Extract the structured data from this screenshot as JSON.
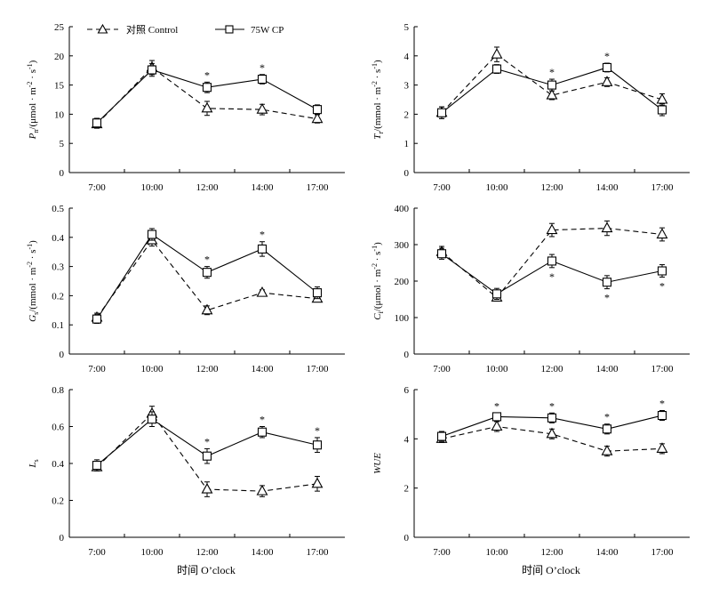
{
  "legend": {
    "control_label": "对照 Control",
    "cp_label": "75W CP"
  },
  "x_axis_title": "时间  O’clock",
  "chart_data": [
    {
      "id": "pn",
      "type": "line",
      "ylabel_main": "P",
      "ylabel_sub": "n",
      "ylabel_unit": "/(μmol · m",
      "ylabel_unit_sup1": "-2",
      "ylabel_unit_mid": " · s",
      "ylabel_unit_sup2": "-1",
      "ylabel_unit_end": ")",
      "categories": [
        "7:00",
        "10:00",
        "12:00",
        "14:00",
        "17:00"
      ],
      "yticks": [
        0,
        5,
        10,
        15,
        20,
        25
      ],
      "ylim": [
        0,
        25
      ],
      "series": [
        {
          "name": "对照 Control",
          "style": "control",
          "values": [
            8.3,
            18.0,
            11.0,
            10.8,
            9.2
          ],
          "errors": [
            0.7,
            1.2,
            1.2,
            0.9,
            0.7
          ]
        },
        {
          "name": "75W CP",
          "style": "cp",
          "values": [
            8.5,
            17.6,
            14.6,
            16.0,
            10.8
          ],
          "errors": [
            0.8,
            1.1,
            0.9,
            0.8,
            0.8
          ]
        }
      ],
      "significance": [
        false,
        false,
        true,
        true,
        false
      ]
    },
    {
      "id": "tr",
      "type": "line",
      "ylabel_main": "T",
      "ylabel_sub": "r",
      "ylabel_unit": "/(mmol · m",
      "ylabel_unit_sup1": "-2",
      "ylabel_unit_mid": " · s",
      "ylabel_unit_sup2": "-1",
      "ylabel_unit_end": ")",
      "categories": [
        "7:00",
        "10:00",
        "12:00",
        "14:00",
        "17:00"
      ],
      "yticks": [
        0,
        1,
        2,
        3,
        4,
        5
      ],
      "ylim": [
        0,
        5
      ],
      "series": [
        {
          "name": "对照 Control",
          "style": "control",
          "values": [
            2.05,
            4.05,
            2.65,
            3.1,
            2.5
          ],
          "errors": [
            0.2,
            0.25,
            0.15,
            0.15,
            0.2
          ]
        },
        {
          "name": "75W CP",
          "style": "cp",
          "values": [
            2.05,
            3.55,
            3.0,
            3.6,
            2.15
          ],
          "errors": [
            0.2,
            0.15,
            0.2,
            0.15,
            0.2
          ]
        }
      ],
      "significance": [
        false,
        false,
        true,
        true,
        false
      ]
    },
    {
      "id": "gs",
      "type": "line",
      "ylabel_main": "G",
      "ylabel_sub": "s",
      "ylabel_unit": "/(mmol · m",
      "ylabel_unit_sup1": "-2",
      "ylabel_unit_mid": " · s",
      "ylabel_unit_sup2": "-1",
      "ylabel_unit_end": ")",
      "categories": [
        "7:00",
        "10:00",
        "12:00",
        "14:00",
        "17:00"
      ],
      "yticks": [
        0,
        0.1,
        0.2,
        0.3,
        0.4,
        0.5
      ],
      "ylim": [
        0,
        0.5
      ],
      "series": [
        {
          "name": "对照 Control",
          "style": "control",
          "values": [
            0.125,
            0.39,
            0.15,
            0.21,
            0.19
          ],
          "errors": [
            0.015,
            0.02,
            0.015,
            0.01,
            0.01
          ]
        },
        {
          "name": "75W CP",
          "style": "cp",
          "values": [
            0.12,
            0.41,
            0.28,
            0.36,
            0.21
          ],
          "errors": [
            0.015,
            0.02,
            0.02,
            0.025,
            0.02
          ]
        }
      ],
      "significance": [
        false,
        false,
        true,
        true,
        false
      ]
    },
    {
      "id": "ci",
      "type": "line",
      "ylabel_main": "C",
      "ylabel_sub": "i",
      "ylabel_unit": "/(μmol · m",
      "ylabel_unit_sup1": "-2",
      "ylabel_unit_mid": " · s",
      "ylabel_unit_sup2": "-1",
      "ylabel_unit_end": ")",
      "categories": [
        "7:00",
        "10:00",
        "12:00",
        "14:00",
        "17:00"
      ],
      "yticks": [
        0,
        100,
        200,
        300,
        400
      ],
      "ylim": [
        0,
        400
      ],
      "series": [
        {
          "name": "对照 Control",
          "style": "control",
          "values": [
            280,
            155,
            340,
            345,
            328
          ],
          "errors": [
            15,
            10,
            18,
            20,
            18
          ]
        },
        {
          "name": "75W CP",
          "style": "cp",
          "values": [
            275,
            165,
            255,
            197,
            228
          ],
          "errors": [
            15,
            15,
            18,
            18,
            17
          ]
        }
      ],
      "significance": [
        false,
        false,
        true,
        true,
        true
      ],
      "significance_position": "below"
    },
    {
      "id": "ls",
      "type": "line",
      "ylabel_main": "L",
      "ylabel_sub": "s",
      "ylabel_unit": "",
      "ylabel_unit_sup1": "",
      "ylabel_unit_mid": "",
      "ylabel_unit_sup2": "",
      "ylabel_unit_end": "",
      "categories": [
        "7:00",
        "10:00",
        "12:00",
        "14:00",
        "17:00"
      ],
      "yticks": [
        0,
        0.2,
        0.4,
        0.6,
        0.8
      ],
      "ylim": [
        0,
        0.8
      ],
      "series": [
        {
          "name": "对照 Control",
          "style": "control",
          "values": [
            0.38,
            0.67,
            0.26,
            0.25,
            0.29
          ],
          "errors": [
            0.02,
            0.04,
            0.04,
            0.03,
            0.04
          ]
        },
        {
          "name": "75W CP",
          "style": "cp",
          "values": [
            0.39,
            0.64,
            0.44,
            0.57,
            0.5
          ],
          "errors": [
            0.03,
            0.04,
            0.04,
            0.03,
            0.04
          ]
        }
      ],
      "significance": [
        false,
        false,
        true,
        true,
        true
      ]
    },
    {
      "id": "wue",
      "type": "line",
      "ylabel_main": "WUE",
      "ylabel_sub": "",
      "ylabel_unit": "",
      "ylabel_unit_sup1": "",
      "ylabel_unit_mid": "",
      "ylabel_unit_sup2": "",
      "ylabel_unit_end": "",
      "categories": [
        "7:00",
        "10:00",
        "12:00",
        "14:00",
        "17:00"
      ],
      "yticks": [
        0,
        2,
        4,
        6
      ],
      "ylim": [
        0,
        6
      ],
      "series": [
        {
          "name": "对照 Control",
          "style": "control",
          "values": [
            4.0,
            4.5,
            4.2,
            3.5,
            3.6
          ],
          "errors": [
            0.15,
            0.2,
            0.2,
            0.2,
            0.2
          ]
        },
        {
          "name": "75W CP",
          "style": "cp",
          "values": [
            4.1,
            4.9,
            4.85,
            4.4,
            4.95
          ],
          "errors": [
            0.2,
            0.15,
            0.2,
            0.2,
            0.2
          ]
        }
      ],
      "significance": [
        false,
        true,
        true,
        true,
        true
      ]
    }
  ]
}
